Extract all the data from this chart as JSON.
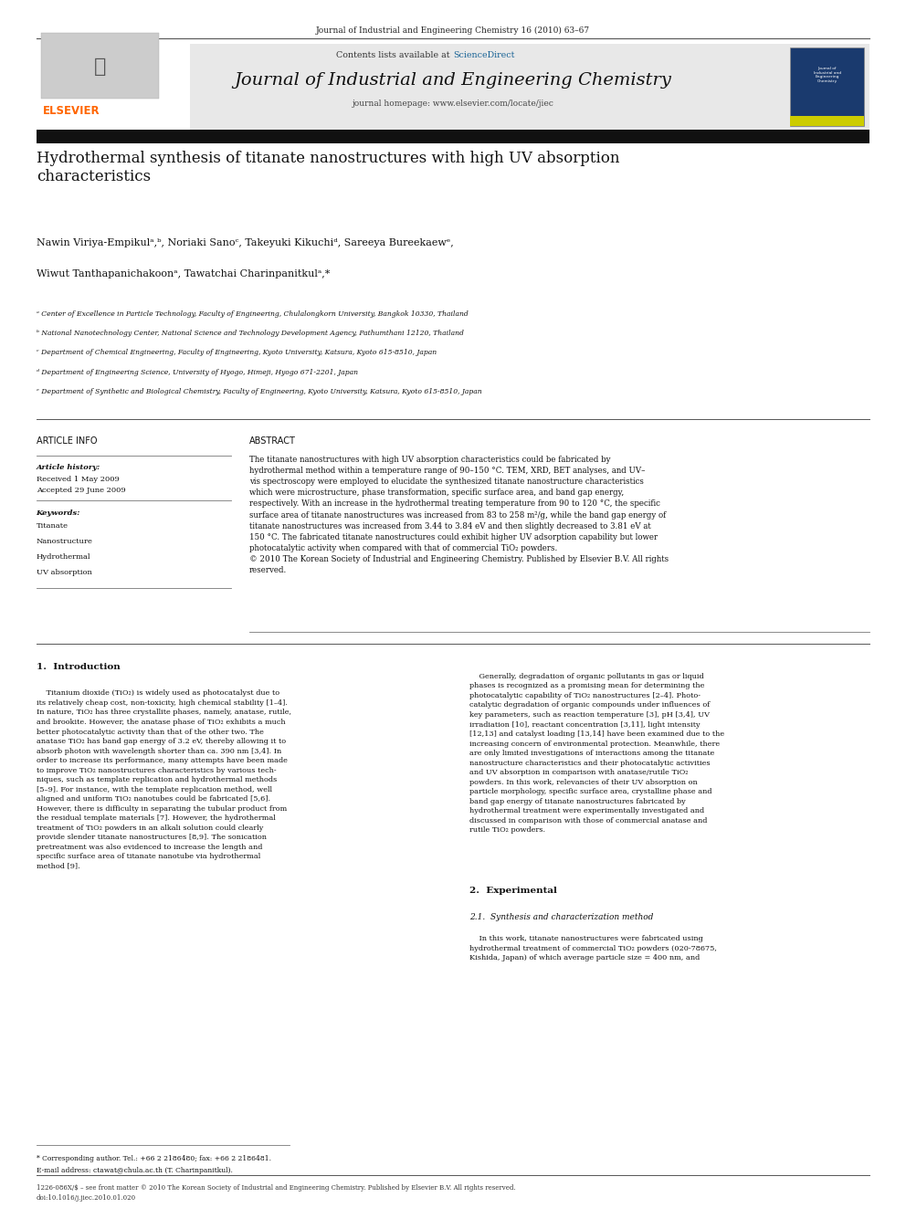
{
  "page_width": 9.92,
  "page_height": 13.23,
  "background_color": "#ffffff",
  "header_journal_ref": "Journal of Industrial and Engineering Chemistry 16 (2010) 63–67",
  "banner_bg": "#e8e8e8",
  "banner_text_prefix": "Contents lists available at ",
  "banner_sciencedirect": "ScienceDirect",
  "banner_sciencedirect_color": "#1a6496",
  "journal_title": "Journal of Industrial and Engineering Chemistry",
  "journal_homepage": "journal homepage: www.elsevier.com/locate/jiec",
  "elsevier_color": "#ff6600",
  "article_title": "Hydrothermal synthesis of titanate nanostructures with high UV absorption\ncharacteristics",
  "authors_line1": "Nawin Viriya-Empikulᵃ,ᵇ, Noriaki Sanoᶜ, Takeyuki Kikuchiᵈ, Sareeya Bureekaewᵉ,",
  "authors_line2": "Wiwut Tanthapanichakoonᵃ, Tawatchai Charinpanitkulᵃ,*",
  "affil_a": "ᵃ Center of Excellence in Particle Technology, Faculty of Engineering, Chulalongkorn University, Bangkok 10330, Thailand",
  "affil_b": "ᵇ National Nanotechnology Center, National Science and Technology Development Agency, Pathumthani 12120, Thailand",
  "affil_c": "ᶜ Department of Chemical Engineering, Faculty of Engineering, Kyoto University, Katsura, Kyoto 615-8510, Japan",
  "affil_d": "ᵈ Department of Engineering Science, University of Hyogo, Himeji, Hyogo 671-2201, Japan",
  "affil_e": "ᵉ Department of Synthetic and Biological Chemistry, Faculty of Engineering, Kyoto University, Katsura, Kyoto 615-8510, Japan",
  "article_info_header": "ARTICLE INFO",
  "abstract_header": "ABSTRACT",
  "article_history_label": "Article history:",
  "received": "Received 1 May 2009",
  "accepted": "Accepted 29 June 2009",
  "keywords_label": "Keywords:",
  "keywords": [
    "Titanate",
    "Nanostructure",
    "Hydrothermal",
    "UV absorption"
  ],
  "abstract_text": "The titanate nanostructures with high UV absorption characteristics could be fabricated by\nhydrothermal method within a temperature range of 90–150 °C. TEM, XRD, BET analyses, and UV–\nvis spectroscopy were employed to elucidate the synthesized titanate nanostructure characteristics\nwhich were microstructure, phase transformation, specific surface area, and band gap energy,\nrespectively. With an increase in the hydrothermal treating temperature from 90 to 120 °C, the specific\nsurface area of titanate nanostructures was increased from 83 to 258 m²/g, while the band gap energy of\ntitanate nanostructures was increased from 3.44 to 3.84 eV and then slightly decreased to 3.81 eV at\n150 °C. The fabricated titanate nanostructures could exhibit higher UV adsorption capability but lower\nphotocatalytic activity when compared with that of commercial TiO₂ powders.\n© 2010 The Korean Society of Industrial and Engineering Chemistry. Published by Elsevier B.V. All rights\nreserved.",
  "intro_header": "1.  Introduction",
  "intro_col1": "    Titanium dioxide (TiO₂) is widely used as photocatalyst due to\nits relatively cheap cost, non-toxicity, high chemical stability [1–4].\nIn nature, TiO₂ has three crystallite phases, namely, anatase, rutile,\nand brookite. However, the anatase phase of TiO₂ exhibits a much\nbetter photocatalytic activity than that of the other two. The\nanatase TiO₂ has band gap energy of 3.2 eV, thereby allowing it to\nabsorb photon with wavelength shorter than ca. 390 nm [3,4]. In\norder to increase its performance, many attempts have been made\nto improve TiO₂ nanostructures characteristics by various tech-\nniques, such as template replication and hydrothermal methods\n[5–9]. For instance, with the template replication method, well\naligned and uniform TiO₂ nanotubes could be fabricated [5,6].\nHowever, there is difficulty in separating the tubular product from\nthe residual template materials [7]. However, the hydrothermal\ntreatment of TiO₂ powders in an alkali solution could clearly\nprovide slender titanate nanostructures [8,9]. The sonication\npretreatment was also evidenced to increase the length and\nspecific surface area of titanate nanotube via hydrothermal\nmethod [9].",
  "intro_col2": "    Generally, degradation of organic pollutants in gas or liquid\nphases is recognized as a promising mean for determining the\nphotocatalytic capability of TiO₂ nanostructures [2–4]. Photo-\ncatalytic degradation of organic compounds under influences of\nkey parameters, such as reaction temperature [3], pH [3,4], UV\nirradiation [10], reactant concentration [3,11], light intensity\n[12,13] and catalyst loading [13,14] have been examined due to the\nincreasing concern of environmental protection. Meanwhile, there\nare only limited investigations of interactions among the titanate\nnanostructure characteristics and their photocatalytic activities\nand UV absorption in comparison with anatase/rutile TiO₂\npowders. In this work, relevancies of their UV absorption on\nparticle morphology, specific surface area, crystalline phase and\nband gap energy of titanate nanostructures fabricated by\nhydrothermal treatment were experimentally investigated and\ndiscussed in comparison with those of commercial anatase and\nrutile TiO₂ powders.",
  "section2_header": "2.  Experimental",
  "section21_header": "2.1.  Synthesis and characterization method",
  "section21_text": "    In this work, titanate nanostructures were fabricated using\nhydrothermal treatment of commercial TiO₂ powders (020-78675,\nKishida, Japan) of which average particle size = 400 nm, and",
  "footnote_corresponding": "* Corresponding author. Tel.: +66 2 2186480; fax: +66 2 2186481.",
  "footnote_email": "E-mail address: ctawat@chula.ac.th (T. Charinpanitkul).",
  "footer_issn": "1226-086X/$ – see front matter © 2010 The Korean Society of Industrial and Engineering Chemistry. Published by Elsevier B.V. All rights reserved.",
  "footer_doi": "doi:10.1016/j.jiec.2010.01.020"
}
